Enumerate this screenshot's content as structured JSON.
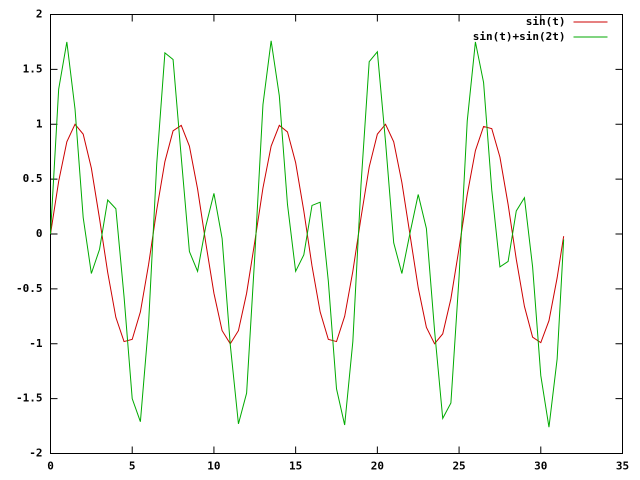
{
  "chart_data": {
    "type": "line",
    "x": [
      0,
      0.5,
      1,
      1.5,
      2,
      2.5,
      3,
      3.5,
      4,
      4.5,
      5,
      5.5,
      6,
      6.5,
      7,
      7.5,
      8,
      8.5,
      9,
      9.5,
      10,
      10.5,
      11,
      11.5,
      12,
      12.5,
      13,
      13.5,
      14,
      14.5,
      15,
      15.5,
      16,
      16.5,
      17,
      17.5,
      18,
      18.5,
      19,
      19.5,
      20,
      20.5,
      21,
      21.5,
      22,
      22.5,
      23,
      23.5,
      24,
      24.5,
      25,
      25.5,
      26,
      26.5,
      27,
      27.5,
      28,
      28.5,
      29,
      29.5,
      30,
      30.5,
      31,
      31.4
    ],
    "series": [
      {
        "name": "sin(t)",
        "color": "#cc0000",
        "values": [
          0,
          0.48,
          0.84,
          1.0,
          0.91,
          0.6,
          0.14,
          -0.35,
          -0.76,
          -0.98,
          -0.96,
          -0.71,
          -0.28,
          0.22,
          0.66,
          0.94,
          0.99,
          0.8,
          0.41,
          -0.08,
          -0.54,
          -0.88,
          -1.0,
          -0.88,
          -0.54,
          -0.07,
          0.42,
          0.8,
          0.99,
          0.93,
          0.65,
          0.21,
          -0.29,
          -0.71,
          -0.96,
          -0.98,
          -0.75,
          -0.34,
          0.15,
          0.61,
          0.91,
          1.0,
          0.84,
          0.47,
          -0.01,
          -0.49,
          -0.85,
          -1.0,
          -0.91,
          -0.59,
          -0.13,
          0.36,
          0.76,
          0.98,
          0.96,
          0.7,
          0.27,
          -0.23,
          -0.66,
          -0.94,
          -0.99,
          -0.79,
          -0.4,
          -0.02
        ]
      },
      {
        "name": "sin(t)+sin(2t)",
        "color": "#00aa00",
        "values": [
          0,
          1.32,
          1.75,
          1.14,
          0.15,
          -0.36,
          -0.14,
          0.31,
          0.23,
          -0.57,
          -1.5,
          -1.71,
          -0.82,
          0.64,
          1.65,
          1.59,
          0.7,
          -0.16,
          -0.34,
          0.07,
          0.37,
          -0.04,
          -1.01,
          -1.73,
          -1.45,
          -0.2,
          1.18,
          1.76,
          1.26,
          0.27,
          -0.34,
          -0.19,
          0.26,
          0.29,
          -0.43,
          -1.41,
          -1.74,
          -0.98,
          0.45,
          1.57,
          1.66,
          0.84,
          -0.08,
          -0.36,
          0.01,
          0.36,
          0.05,
          -0.88,
          -1.68,
          -1.54,
          -0.39,
          1.03,
          1.75,
          1.38,
          0.4,
          -0.3,
          -0.25,
          0.21,
          0.33,
          -0.3,
          -1.29,
          -1.76,
          -1.14,
          -0.05
        ]
      }
    ],
    "xlim": [
      0,
      35
    ],
    "xticks": [
      0,
      5,
      10,
      15,
      20,
      25,
      30,
      35
    ],
    "ylim": [
      -2,
      2
    ],
    "yticks": [
      -2,
      -1.5,
      -1,
      -0.5,
      0,
      0.5,
      1,
      1.5,
      2
    ],
    "legend": "top-right"
  }
}
